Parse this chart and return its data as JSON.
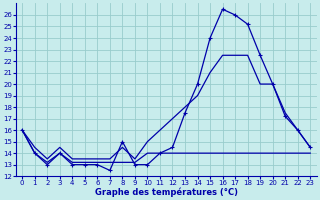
{
  "title": "Graphe des températures (°C)",
  "bg_color": "#c8ecec",
  "plot_bg_color": "#c8ecec",
  "line_color": "#0000aa",
  "grid_color": "#99cccc",
  "xlim": [
    -0.5,
    23.5
  ],
  "ylim": [
    12,
    27
  ],
  "xticks": [
    0,
    1,
    2,
    3,
    4,
    5,
    6,
    7,
    8,
    9,
    10,
    11,
    12,
    13,
    14,
    15,
    16,
    17,
    18,
    19,
    20,
    21,
    22,
    23
  ],
  "yticks": [
    12,
    13,
    14,
    15,
    16,
    17,
    18,
    19,
    20,
    21,
    22,
    23,
    24,
    25,
    26
  ],
  "line1_x": [
    0,
    1,
    2,
    3,
    4,
    5,
    6,
    7,
    8,
    9,
    10,
    11,
    12,
    13,
    14,
    15,
    16,
    17,
    18,
    19,
    20,
    21,
    22,
    23
  ],
  "line1_y": [
    16,
    14,
    13,
    14,
    13,
    13,
    13,
    12.5,
    15,
    13,
    13,
    14,
    14.5,
    17.5,
    20,
    24,
    26.5,
    26,
    25.2,
    22.5,
    20,
    17.2,
    16,
    14.5
  ],
  "line2_x": [
    0,
    1,
    2,
    3,
    4,
    5,
    6,
    7,
    8,
    9,
    10,
    11,
    12,
    13,
    14,
    15,
    16,
    17,
    18,
    19,
    20,
    21,
    22,
    23
  ],
  "line2_y": [
    16,
    14,
    13.2,
    14,
    13.2,
    13.2,
    13.2,
    13.2,
    13.2,
    13.2,
    14,
    14,
    14,
    14,
    14,
    14,
    14,
    14,
    14,
    14,
    14,
    14,
    14,
    14
  ],
  "line3_x": [
    0,
    1,
    2,
    3,
    4,
    5,
    6,
    7,
    8,
    9,
    10,
    11,
    12,
    13,
    14,
    15,
    16,
    17,
    18,
    19,
    20,
    21,
    22,
    23
  ],
  "line3_y": [
    16,
    14.5,
    13.5,
    14.5,
    13.5,
    13.5,
    13.5,
    13.5,
    14.5,
    13.5,
    15,
    16,
    17,
    18,
    19,
    21,
    22.5,
    22.5,
    22.5,
    20,
    20,
    17.5,
    16,
    14.5
  ]
}
